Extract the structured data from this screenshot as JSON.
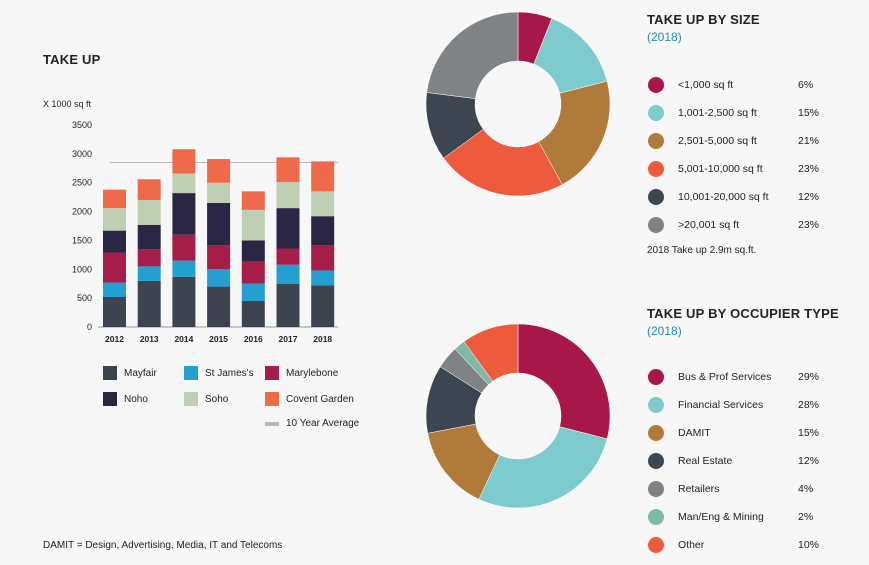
{
  "left": {
    "title": "TAKE UP",
    "unit": "X 1000 sq ft",
    "footnote": "DAMIT = Design, Advertising, Media, IT and Telecoms"
  },
  "chart_data": [
    {
      "type": "bar",
      "stacked": true,
      "title": "TAKE UP",
      "ylabel": "X 1000 sq ft",
      "ylim": [
        0,
        3500
      ],
      "yticks": [
        0,
        500,
        1000,
        1500,
        2000,
        2500,
        3000,
        3500
      ],
      "categories": [
        "2012",
        "2013",
        "2014",
        "2015",
        "2016",
        "2017",
        "2018"
      ],
      "series": [
        {
          "name": "Mayfair",
          "color": "#3d4450",
          "values": [
            520,
            800,
            870,
            700,
            450,
            750,
            720
          ]
        },
        {
          "name": "St James's",
          "color": "#239fd0",
          "values": [
            250,
            250,
            280,
            300,
            300,
            330,
            260
          ]
        },
        {
          "name": "Marylebone",
          "color": "#a51d49",
          "values": [
            520,
            300,
            450,
            420,
            380,
            280,
            440
          ]
        },
        {
          "name": "Noho",
          "color": "#2a2644",
          "values": [
            380,
            420,
            720,
            730,
            370,
            700,
            500
          ]
        },
        {
          "name": "Soho",
          "color": "#bfcfb3",
          "values": [
            390,
            430,
            340,
            350,
            530,
            450,
            430
          ]
        },
        {
          "name": "Covent Garden",
          "color": "#ef6a4b",
          "values": [
            320,
            360,
            420,
            410,
            320,
            430,
            520
          ]
        }
      ],
      "reference_line": {
        "name": "10 Year Average",
        "value": 2850,
        "color": "#b9b9b9"
      }
    },
    {
      "type": "pie",
      "title": "TAKE UP BY SIZE",
      "subtitle": "(2018)",
      "labels": [
        "<1,000 sq ft",
        "1,001-2,500 sq ft",
        "2,501-5,000 sq ft",
        "5,001-10,000 sq ft",
        "10,001-20,000 sq ft",
        ">20,001 sq ft"
      ],
      "values": [
        6,
        15,
        21,
        23,
        12,
        23
      ],
      "display": [
        "6%",
        "15%",
        "21%",
        "23%",
        "12%",
        "23%"
      ],
      "colors": [
        "#a8174a",
        "#7ecbce",
        "#b07a3a",
        "#ed5a3c",
        "#3c4550",
        "#7f8385"
      ],
      "note": "2018 Take up 2.9m sq.ft."
    },
    {
      "type": "pie",
      "title": "TAKE UP BY OCCUPIER TYPE",
      "subtitle": "(2018)",
      "labels": [
        "Bus & Prof Services",
        "Financial Services",
        "DAMIT",
        "Real Estate",
        "Retailers",
        "Man/Eng & Mining",
        "Other"
      ],
      "values": [
        29,
        28,
        15,
        12,
        4,
        2,
        10
      ],
      "display": [
        "29%",
        "28%",
        "15%",
        "12%",
        "4%",
        "2%",
        "10%"
      ],
      "colors": [
        "#a8174a",
        "#7ecbce",
        "#b07a3a",
        "#3c4550",
        "#7f8385",
        "#7fb9a6",
        "#ed5a3c"
      ]
    }
  ]
}
